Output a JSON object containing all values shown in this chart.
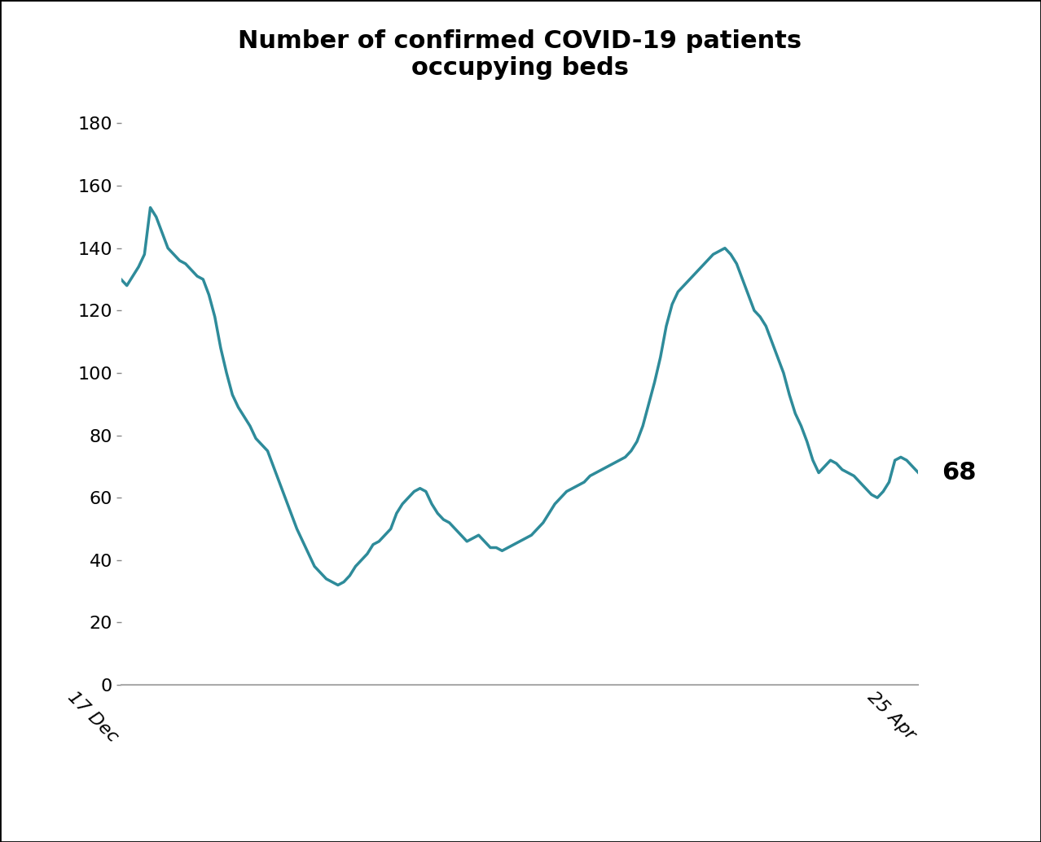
{
  "title": "Number of confirmed COVID-19 patients\noccupying beds",
  "line_color": "#2E8B9A",
  "line_width": 2.5,
  "annotation_text": "68",
  "annotation_fontsize": 22,
  "annotation_fontweight": "bold",
  "x_tick_labels": [
    "17 Dec",
    "25 Apr"
  ],
  "x_tick_rotation": -45,
  "yticks": [
    0,
    20,
    40,
    60,
    80,
    100,
    120,
    140,
    160,
    180
  ],
  "ylim": [
    0,
    190
  ],
  "title_fontsize": 22,
  "tick_fontsize": 16,
  "background_color": "#ffffff",
  "values": [
    130,
    128,
    131,
    134,
    138,
    153,
    150,
    145,
    140,
    138,
    136,
    135,
    133,
    131,
    130,
    125,
    118,
    108,
    100,
    93,
    89,
    86,
    83,
    79,
    77,
    75,
    70,
    65,
    60,
    55,
    50,
    46,
    42,
    38,
    36,
    34,
    33,
    32,
    33,
    35,
    38,
    40,
    42,
    45,
    46,
    48,
    50,
    55,
    58,
    60,
    62,
    63,
    62,
    58,
    55,
    53,
    52,
    50,
    48,
    46,
    47,
    48,
    46,
    44,
    44,
    43,
    44,
    45,
    46,
    47,
    48,
    50,
    52,
    55,
    58,
    60,
    62,
    63,
    64,
    65,
    67,
    68,
    69,
    70,
    71,
    72,
    73,
    75,
    78,
    83,
    90,
    97,
    105,
    115,
    122,
    126,
    128,
    130,
    132,
    134,
    136,
    138,
    139,
    140,
    138,
    135,
    130,
    125,
    120,
    118,
    115,
    110,
    105,
    100,
    93,
    87,
    83,
    78,
    72,
    68,
    70,
    72,
    71,
    69,
    68,
    67,
    65,
    63,
    61,
    60,
    62,
    65,
    72,
    73,
    72,
    70,
    68
  ]
}
